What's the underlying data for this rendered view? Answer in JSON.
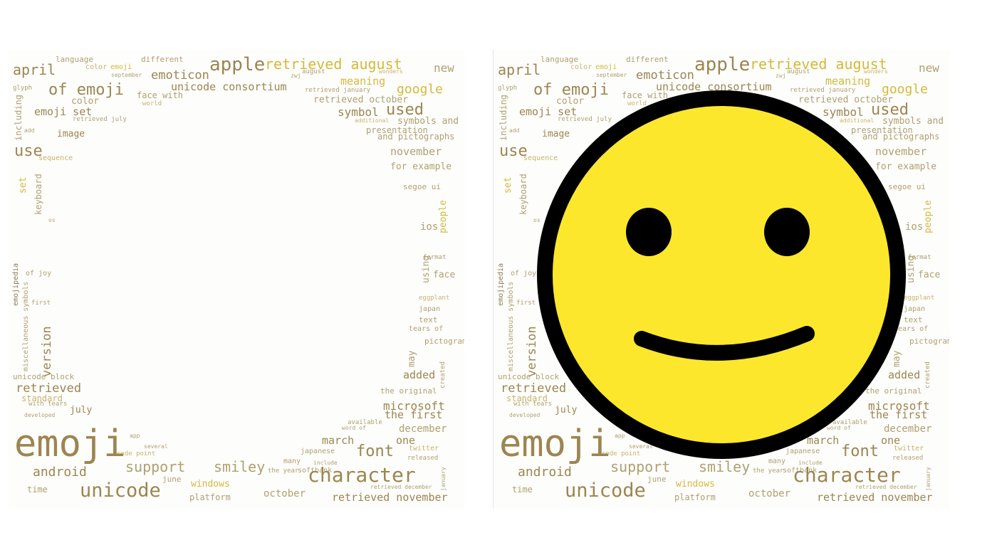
{
  "panels": [
    {
      "name": "wordcloud-frame",
      "has_smiley": false
    },
    {
      "name": "wordcloud-with-smiley",
      "has_smiley": true
    }
  ],
  "words": [
    "language",
    "different",
    "color",
    "emoji",
    "september",
    "zwj",
    "august",
    "wonders",
    "april",
    "apple",
    "retrieved august",
    "new",
    "emoticon",
    "meaning",
    "glyph",
    "unicode consortium",
    "retrieved january",
    "of emoji",
    "face with",
    "google",
    "color",
    "world",
    "retrieved october",
    "including",
    "emoji set",
    "symbol",
    "used",
    "retrieved july",
    "additional",
    "symbols and",
    "presentation",
    "add",
    "image",
    "and pictographs",
    "use",
    "november",
    "sequence",
    "for example",
    "set",
    "keyboard",
    "segoe ui",
    "os",
    "people",
    "ios",
    "format",
    "using",
    "of joy",
    "face",
    "emojipedia",
    "miscellaneous symbols",
    "first",
    "eggplant",
    "japan",
    "text",
    "tears of",
    "version",
    "pictogram",
    "may",
    "unicode block",
    "added",
    "created",
    "retrieved",
    "the original",
    "standard",
    "with tears",
    "july",
    "microsoft",
    "the first",
    "developed",
    "available",
    "word of",
    "december",
    "app",
    "several",
    "march",
    "one",
    "twitter",
    "code point",
    "japanese",
    "font",
    "many",
    "include",
    "released",
    "support",
    "smiley",
    "the year",
    "softbank",
    "android",
    "character",
    "june",
    "january",
    "time",
    "unicode",
    "windows",
    "retrieved december",
    "october",
    "platform",
    "retrieved november"
  ],
  "smiley": {
    "face_color": "#fce72c",
    "outline_color": "#000000"
  }
}
